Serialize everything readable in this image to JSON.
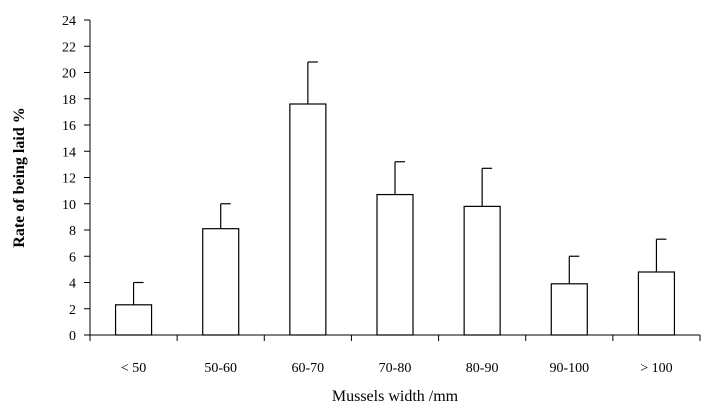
{
  "chart_data": {
    "type": "bar",
    "title": "",
    "xlabel": "Mussels width /mm",
    "ylabel": "Rate of being laid %",
    "categories": [
      "< 50",
      "50-60",
      "60-70",
      "70-80",
      "80-90",
      "90-100",
      "> 100"
    ],
    "values": [
      2.3,
      8.1,
      17.6,
      10.7,
      9.8,
      3.9,
      4.8
    ],
    "error_upper": [
      1.7,
      1.9,
      3.2,
      2.5,
      2.9,
      2.1,
      2.5
    ],
    "ylim": [
      0,
      24
    ],
    "yticks": [
      0,
      2,
      4,
      6,
      8,
      10,
      12,
      14,
      16,
      18,
      20,
      22,
      24
    ],
    "grid": false,
    "legend": "none",
    "colors": {
      "bar_fill": "#ffffff",
      "bar_stroke": "#000000",
      "axis": "#000000"
    }
  }
}
